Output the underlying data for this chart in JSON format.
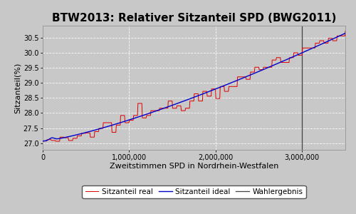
{
  "title": "BTW2013: Relativer Sitzanteil SPD (BWG2011)",
  "xlabel": "Zweitstimmen SPD in Nordrhein-Westfalen",
  "ylabel": "Sitzanteil(%)",
  "xlim": [
    0,
    3500000
  ],
  "ylim": [
    26.78,
    30.9
  ],
  "yticks": [
    27.0,
    27.5,
    28.0,
    28.5,
    29.0,
    29.5,
    30.0,
    30.5
  ],
  "xticks": [
    0,
    1000000,
    2000000,
    3000000
  ],
  "wahlergebnis_x": 3000000,
  "color_real": "#dd0000",
  "color_ideal": "#0000cc",
  "color_vline": "#444444",
  "bg_color": "#c8c8c8",
  "fig_bg_color": "#c8c8c8",
  "legend_labels": [
    "Sitzanteil real",
    "Sitzanteil ideal",
    "Wahlergebnis"
  ],
  "x_start": 0,
  "x_end": 3500000,
  "y_start": 27.07,
  "y_end_real": 30.72,
  "y_end_ideal": 30.65,
  "n_points": 700,
  "title_fontsize": 11,
  "axis_fontsize": 8,
  "tick_fontsize": 7,
  "legend_fontsize": 7.5
}
